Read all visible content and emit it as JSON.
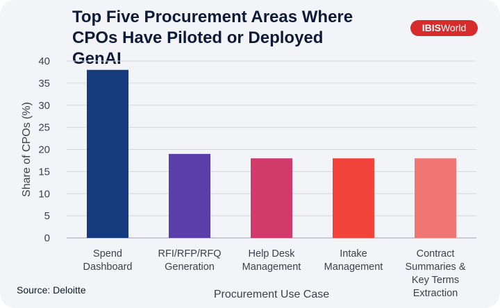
{
  "brand": {
    "logo_bold": "IBIS",
    "logo_rest": "World",
    "color": "#d62c2c"
  },
  "source": "Source: Deloitte",
  "chart_data": {
    "type": "bar",
    "title": "Top Five Procurement Areas Where CPOs Have Piloted or Deployed GenAI",
    "xlabel": "Procurement Use Case",
    "ylabel": "Share of CPOs (%)",
    "ylim": [
      0,
      40
    ],
    "yticks": [
      0,
      5,
      10,
      15,
      20,
      25,
      30,
      35,
      40
    ],
    "grid": true,
    "categories": [
      [
        "Spend",
        "Dashboard"
      ],
      [
        "RFI/RFP/RFQ",
        "Generation"
      ],
      [
        "Help Desk",
        "Management"
      ],
      [
        "Intake",
        "Management"
      ],
      [
        "Contract",
        "Summaries &",
        "Key Terms",
        "Extraction"
      ]
    ],
    "values": [
      38,
      19,
      18,
      18,
      18
    ],
    "colors": [
      "#163b7e",
      "#5a3ea9",
      "#d33a6c",
      "#f2433a",
      "#ef7673"
    ]
  }
}
